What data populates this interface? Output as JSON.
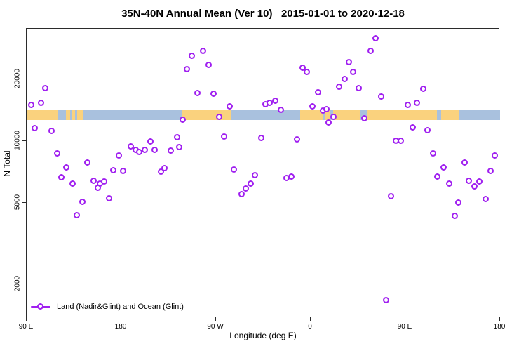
{
  "title": "35N-40N Annual Mean (Ver 10)   2015-01-01 to 2020-12-18",
  "axes": {
    "x": {
      "label": "Longitude (deg E)",
      "tick_positions_deg_east": [
        90,
        180,
        270,
        360,
        450,
        540
      ],
      "tick_labels": [
        "90 E",
        "180",
        "90 W",
        "0",
        "90 E",
        "180"
      ]
    },
    "y": {
      "label": "N Total",
      "tick_values": [
        20000,
        10000,
        5000,
        2000
      ],
      "tick_labels": [
        "20000",
        "10000",
        "5000",
        "2000"
      ]
    }
  },
  "legend": {
    "label": "Land (Nadir&Glint) and Ocean (Glint)"
  },
  "colors": {
    "marker": "#A020F0",
    "land": "#FAD27E",
    "ocean": "#A9C1DE",
    "axis": "#2b2b2b"
  },
  "chart_data": {
    "type": "scatter",
    "title": "35N-40N Annual Mean (Ver 10)   2015-01-01 to 2020-12-18",
    "xlabel": "Longitude (deg E)",
    "ylabel": "N Total",
    "y_scale": "log",
    "ylim": [
      1371,
      35320
    ],
    "x_axis_range_deg_east": [
      90,
      540
    ],
    "x_tick_deg_east": [
      90,
      180,
      270,
      360,
      450,
      540
    ],
    "x_tick_labels": [
      "90 E",
      "180",
      "90 W",
      "0",
      "90 E",
      "180"
    ],
    "y_ticks": [
      2000,
      5000,
      10000,
      20000
    ],
    "grid": false,
    "legend_position": "bottom-left-inside",
    "map_strip": {
      "description": "land/ocean strip of the 35N-40N latitude belt drawn as a horizontal band",
      "n_top": 14300,
      "n_bottom": 12700,
      "ocean_range_deg_east": [
        90,
        540
      ],
      "land_segments_deg_east": [
        [
          90,
          120
        ],
        [
          127,
          131
        ],
        [
          133,
          136
        ],
        [
          138,
          144
        ],
        [
          238,
          284
        ],
        [
          350,
          371
        ],
        [
          373,
          378
        ],
        [
          381,
          407
        ],
        [
          414,
          480
        ],
        [
          484,
          501
        ]
      ]
    },
    "series": [
      {
        "name": "Land (Nadir&Glint) and Ocean (Glint)",
        "marker": "open-circle",
        "color": "#A020F0",
        "points_lon_n": [
          [
            108,
            18100
          ],
          [
            94.7,
            15000
          ],
          [
            104,
            15300
          ],
          [
            98,
            11500
          ],
          [
            114,
            11200
          ],
          [
            119.3,
            8680
          ],
          [
            128,
            7410
          ],
          [
            148,
            7830
          ],
          [
            123.3,
            6640
          ],
          [
            134,
            6180
          ],
          [
            154,
            6380
          ],
          [
            160,
            6180
          ],
          [
            164,
            6330
          ],
          [
            158,
            5890
          ],
          [
            172.7,
            7180
          ],
          [
            168.7,
            5240
          ],
          [
            143.3,
            5040
          ],
          [
            138,
            4330
          ],
          [
            247.3,
            26000
          ],
          [
            242.7,
            22350
          ],
          [
            252.7,
            17100
          ],
          [
            238.7,
            12700
          ],
          [
            233.3,
            10400
          ],
          [
            208,
            9920
          ],
          [
            189.3,
            9390
          ],
          [
            194,
            9030
          ],
          [
            197.3,
            8810
          ],
          [
            202.7,
            9030
          ],
          [
            212,
            9030
          ],
          [
            227.3,
            8960
          ],
          [
            235.3,
            9320
          ],
          [
            178,
            8470
          ],
          [
            182,
            7120
          ],
          [
            221.3,
            7350
          ],
          [
            218,
            7070
          ],
          [
            258,
            27400
          ],
          [
            263.3,
            23400
          ],
          [
            268,
            17000
          ],
          [
            283.3,
            14700
          ],
          [
            273.3,
            13100
          ],
          [
            278,
            10500
          ],
          [
            313.3,
            10300
          ],
          [
            287.3,
            7240
          ],
          [
            307.3,
            6790
          ],
          [
            303.3,
            6180
          ],
          [
            298.7,
            5850
          ],
          [
            294.7,
            5490
          ],
          [
            317.3,
            15100
          ],
          [
            321.3,
            15300
          ],
          [
            326.7,
            15700
          ],
          [
            352.7,
            22700
          ],
          [
            356.7,
            21700
          ],
          [
            396.7,
            24200
          ],
          [
            400.7,
            21700
          ],
          [
            392.7,
            20000
          ],
          [
            387.3,
            18400
          ],
          [
            406,
            18100
          ],
          [
            367.3,
            17200
          ],
          [
            362,
            14700
          ],
          [
            332,
            14200
          ],
          [
            372,
            14000
          ],
          [
            375.3,
            14300
          ],
          [
            382,
            13100
          ],
          [
            377.3,
            12300
          ],
          [
            347.3,
            10200
          ],
          [
            337.3,
            6590
          ],
          [
            342,
            6690
          ],
          [
            422,
            31600
          ],
          [
            417.3,
            27400
          ],
          [
            427.3,
            16400
          ],
          [
            467.3,
            17900
          ],
          [
            461.3,
            15300
          ],
          [
            452.7,
            15000
          ],
          [
            411.3,
            12900
          ],
          [
            457.3,
            11600
          ],
          [
            471.3,
            11300
          ],
          [
            441.3,
            10000
          ],
          [
            446,
            10000
          ],
          [
            476.7,
            8680
          ],
          [
            486.7,
            7410
          ],
          [
            480.7,
            6690
          ],
          [
            436.7,
            5360
          ],
          [
            432,
            1670
          ],
          [
            535.3,
            8470
          ],
          [
            506.7,
            7830
          ],
          [
            531.3,
            7120
          ],
          [
            510.7,
            6380
          ],
          [
            516,
            5990
          ],
          [
            520.7,
            6350
          ],
          [
            492,
            6180
          ],
          [
            500.7,
            5000
          ],
          [
            497.3,
            4300
          ],
          [
            526.7,
            5200
          ]
        ]
      }
    ]
  }
}
